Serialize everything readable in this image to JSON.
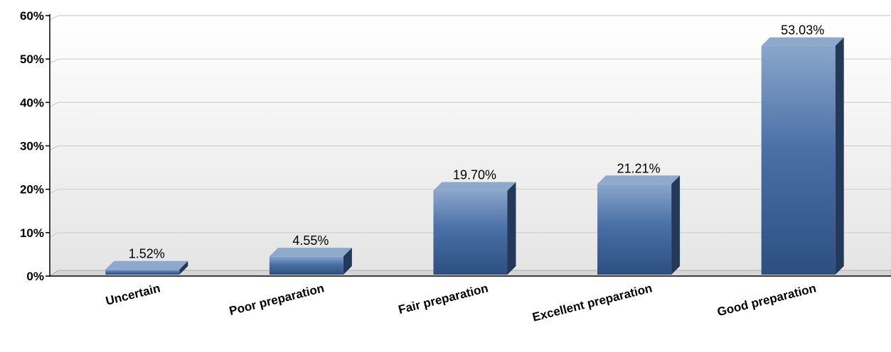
{
  "chart_data": {
    "type": "bar",
    "title": "",
    "xlabel": "",
    "ylabel": "",
    "categories": [
      "Uncertain",
      "Poor preparation",
      "Fair preparation",
      "Excellent preparation",
      "Good preparation"
    ],
    "values": [
      1.52,
      4.55,
      19.7,
      21.21,
      53.03
    ],
    "value_labels": [
      "1.52%",
      "4.55%",
      "19.70%",
      "21.21%",
      "53.03%"
    ],
    "ylim": [
      0,
      60
    ],
    "y_ticks": [
      0,
      10,
      20,
      30,
      40,
      50,
      60
    ],
    "y_tick_labels": [
      "0%",
      "10%",
      "20%",
      "30%",
      "40%",
      "50%",
      "60%"
    ],
    "grid": true,
    "legend": "none",
    "style": "3d-bar",
    "colors": {
      "bar_top": "#8fa9cc",
      "bar_front_light": "#6f92c0",
      "bar_front_dark": "#2f568a",
      "bar_side": "#22395a",
      "grid": "#d0d0d0",
      "background_top": "#ffffff",
      "background_bottom": "#e6e6e6"
    }
  }
}
